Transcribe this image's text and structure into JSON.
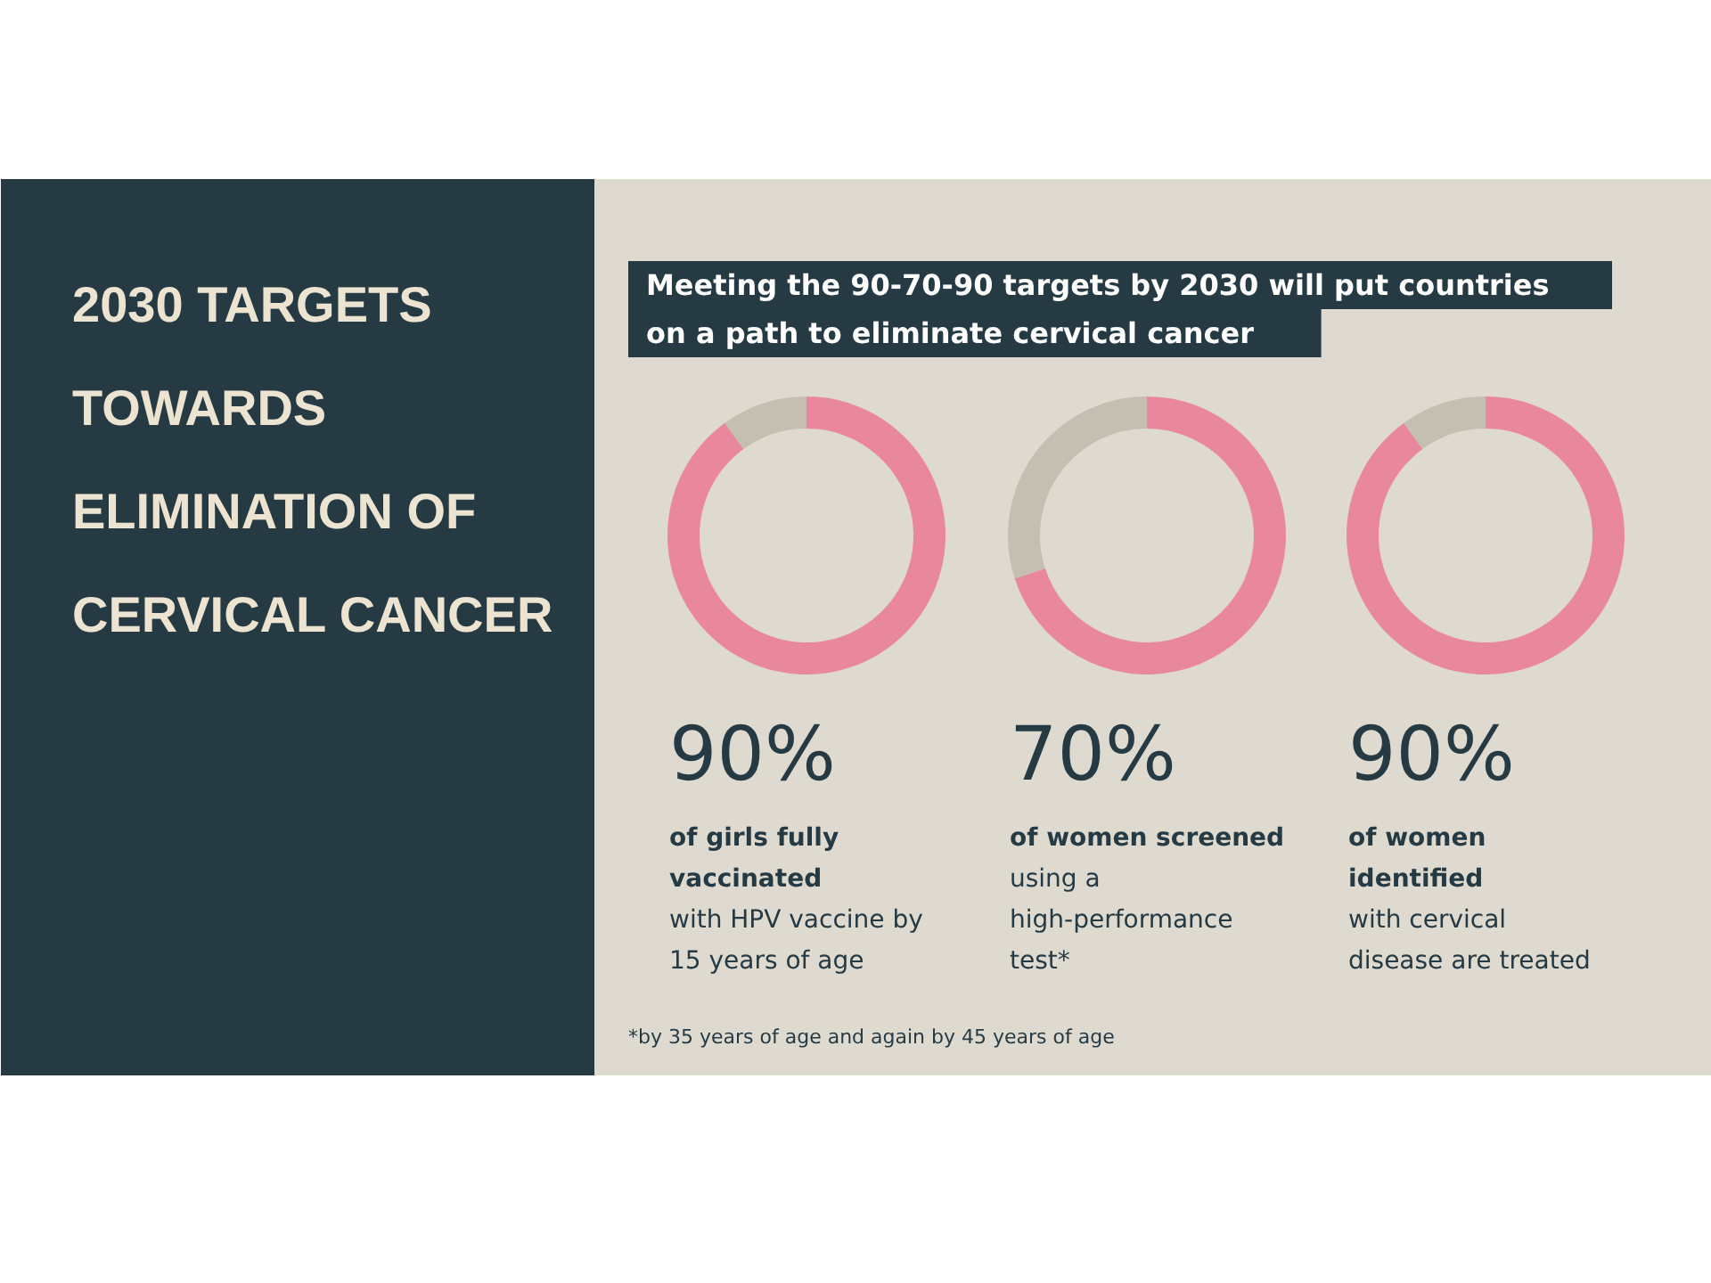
{
  "chart_data": [
    {
      "type": "other",
      "title": "2030 TARGETS TOWARDS ELIMINATION OF CERVICAL CANCER",
      "subtitle": "Meeting the 90-70-90 targets by 2030 will put countries on a path to eliminate cervical cancer",
      "annotations": [
        "*by 35 years of age and again by 45 years of age"
      ]
    },
    {
      "type": "donut",
      "categories": [
        null,
        null
      ],
      "values": [
        90,
        10
      ],
      "colors": [
        "#e8879e",
        "#c4bfb0"
      ],
      "value_labels": [
        "90%",
        null
      ],
      "annotations": [
        "of girls fully vaccinated",
        "with HPV vaccine by 15 years of age"
      ]
    },
    {
      "type": "donut",
      "categories": [
        null,
        null
      ],
      "values": [
        70,
        30
      ],
      "colors": [
        "#e8879e",
        "#c4bfb0"
      ],
      "value_labels": [
        "70%",
        null
      ],
      "annotations": [
        "of women screened",
        "using a high-performance test*"
      ]
    },
    {
      "type": "donut",
      "categories": [
        null,
        null
      ],
      "values": [
        90,
        10
      ],
      "colors": [
        "#e8879e",
        "#c4bfb0"
      ],
      "value_labels": [
        "90%",
        null
      ],
      "annotations": [
        "of women identified",
        "with cervical disease are treated"
      ]
    }
  ]
}
